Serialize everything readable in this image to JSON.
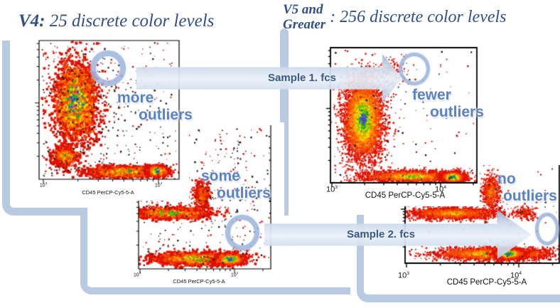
{
  "title_left": {
    "prefix": "V4:",
    "rest": " 25 discrete color levels"
  },
  "title_right": {
    "l1": "V5 and",
    "l2": "Greater",
    "rest": ": 256 discrete color levels"
  },
  "arrows": [
    {
      "label": "Sample 1. fcs"
    },
    {
      "label": "Sample 2. fcs"
    }
  ],
  "callouts": [
    {
      "w1": "more",
      "w2": "outliers"
    },
    {
      "w1": "fewer",
      "w2": "outliers"
    },
    {
      "w1": "some",
      "w2": "outliers"
    },
    {
      "w1": "no",
      "w2": "outliers"
    }
  ],
  "plots": [
    {
      "name": "V4 Sample 1",
      "xlabel": "CD45 PerCP-Cy5-5-A",
      "xticks": [
        {
          "b": "10",
          "e": "3"
        },
        {
          "b": "10",
          "e": "4"
        }
      ]
    },
    {
      "name": "V5 Sample 1",
      "xlabel": "CD45 PerCP-Cy5-5-A",
      "xticks": [
        {
          "b": "10",
          "e": "3"
        },
        {
          "b": "10",
          "e": "4"
        }
      ]
    },
    {
      "name": "V4 Sample 2",
      "xlabel": "CD45 PerCP-Cy5-5-A",
      "xticks": [
        {
          "b": "10",
          "e": "3"
        },
        {
          "b": "10",
          "e": "4"
        }
      ]
    },
    {
      "name": "V5 Sample 2",
      "xlabel": "CD45 PerCP-Cy5-5-A",
      "xticks": [
        {
          "b": "10",
          "e": "3"
        },
        {
          "b": "10",
          "e": "4"
        }
      ]
    }
  ],
  "colors": {
    "panel_border": "#b7cae2",
    "title_text": "#2e4f87",
    "callout_text": "#5b82c4",
    "arrow_label_text": "#2d4d7e",
    "density_low": "#e01000",
    "density_mid": "#ffd800",
    "density_high": "#20b400",
    "density_peak": "#a018c8"
  }
}
